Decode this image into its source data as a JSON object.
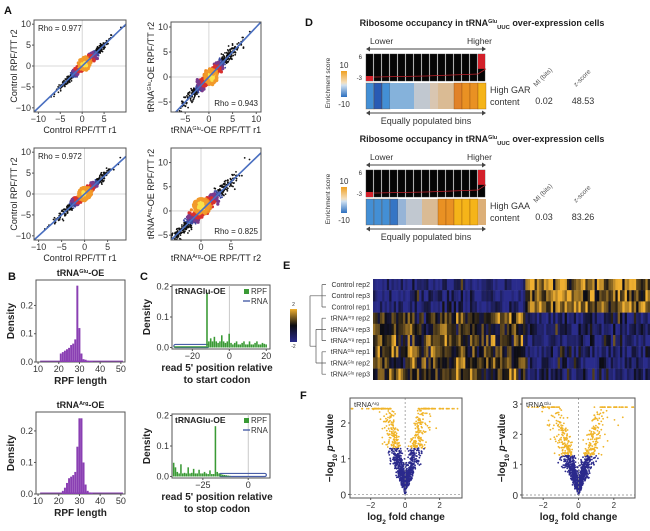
{
  "panels": {
    "A": "A",
    "B": "B",
    "C": "C",
    "D": "D",
    "E": "E",
    "F": "F"
  },
  "chart_data": [
    {
      "id": "A1",
      "type": "scatter",
      "title": "",
      "xlabel": "Control RPF/TT r1",
      "ylabel": "Control RPF/TT r2",
      "xlim": [
        -11,
        10
      ],
      "ylim": [
        -11,
        11
      ],
      "xticks": [
        -10,
        -5,
        0,
        5
      ],
      "yticks": [
        -10,
        -5,
        0,
        5,
        10
      ],
      "annotation": "Rho = 0.977",
      "annotation_position": "top-left",
      "fit_line": {
        "slope": 1,
        "intercept": 0
      },
      "spread": 0.9,
      "center": [
        0.5,
        0.5
      ],
      "grid_lines": [
        0,
        0
      ]
    },
    {
      "id": "A2",
      "type": "scatter",
      "title": "",
      "xlabel": "tRNAGlu-OE RPF/TT r1",
      "xlabel_parts": [
        "tRNA",
        "Glu",
        "-OE RPF/TT r1"
      ],
      "ylabel": "tRNAGlu-OE RPF/TT r2",
      "ylabel_parts": [
        "tRNA",
        "Glu",
        "-OE RPF/TT r2"
      ],
      "xlim": [
        -8,
        11
      ],
      "ylim": [
        -7,
        11
      ],
      "xticks": [
        -5,
        0,
        5,
        10
      ],
      "yticks": [
        -5,
        0,
        5,
        10
      ],
      "annotation": "Rho = 0.943",
      "annotation_position": "bottom-right",
      "fit_line": {
        "slope": 1,
        "intercept": 0
      },
      "spread": 1.3,
      "center": [
        0.5,
        0.0
      ],
      "grid_lines": [
        0,
        0
      ]
    },
    {
      "id": "A3",
      "type": "scatter",
      "title": "",
      "xlabel": "Control RPF/TT r1",
      "ylabel": "Control RPF/TT r2",
      "xlim": [
        -11,
        9
      ],
      "ylim": [
        -11,
        11
      ],
      "xticks": [
        -10,
        -5,
        0,
        5
      ],
      "yticks": [
        -10,
        -5,
        0,
        5,
        10
      ],
      "annotation": "Rho = 0.972",
      "annotation_position": "top-left",
      "fit_line": {
        "slope": 1,
        "intercept": 0
      },
      "spread": 1.0,
      "center": [
        0.0,
        0.0
      ],
      "grid_lines": [
        0,
        0
      ]
    },
    {
      "id": "A4",
      "type": "scatter",
      "title": "",
      "xlabel": "tRNAArg-OE RPF/TT r2",
      "xlabel_parts": [
        "tRNA",
        "Arg",
        "-OE RPF/TT r2"
      ],
      "ylabel": "tRNAArg-OE RPF/TT r2",
      "ylabel_parts": [
        "tRNA",
        "Arg",
        "-OE RPF/TT r2"
      ],
      "xlim": [
        -5,
        10
      ],
      "ylim": [
        -6,
        13
      ],
      "xticks": [
        0,
        5
      ],
      "yticks": [
        -5,
        0,
        5,
        10
      ],
      "annotation": "Rho = 0.825",
      "annotation_position": "bottom-right",
      "fit_line": {
        "slope": 1.2,
        "intercept": 0
      },
      "spread": 1.4,
      "center": [
        0.0,
        1.0
      ],
      "grid_lines": [
        0,
        0
      ]
    },
    {
      "id": "B1",
      "type": "bar",
      "title": "tRNAGlu-OE",
      "title_parts": [
        "tRNA",
        "Glu",
        "-OE"
      ],
      "xlabel": "RPF length",
      "ylabel": "Density",
      "xlim": [
        9,
        52
      ],
      "ylim": [
        0,
        0.29
      ],
      "xticks": [
        10,
        20,
        30,
        40,
        50
      ],
      "yticks": [
        0.0,
        0.1,
        0.2
      ],
      "x": [
        21,
        22,
        23,
        24,
        25,
        26,
        27,
        28,
        29,
        30,
        31,
        32,
        33,
        34,
        35,
        36
      ],
      "values": [
        0.03,
        0.035,
        0.04,
        0.045,
        0.05,
        0.06,
        0.065,
        0.08,
        0.27,
        0.12,
        0.03,
        0.01,
        0.008,
        0.005,
        0.003,
        0.002
      ],
      "baseline": 0.003,
      "color": "#8a3fb3"
    },
    {
      "id": "B2",
      "type": "bar",
      "title": "tRNAArg-OE",
      "title_parts": [
        "tRNA",
        "Arg",
        "-OE"
      ],
      "xlabel": "RPF length",
      "ylabel": "Density",
      "xlim": [
        9,
        52
      ],
      "ylim": [
        0,
        0.26
      ],
      "xticks": [
        10,
        20,
        30,
        40,
        50
      ],
      "yticks": [
        0.0,
        0.1,
        0.2
      ],
      "x": [
        22,
        23,
        24,
        25,
        26,
        27,
        28,
        29,
        30,
        31,
        32,
        33,
        34,
        35,
        36
      ],
      "values": [
        0.01,
        0.02,
        0.035,
        0.05,
        0.055,
        0.06,
        0.07,
        0.15,
        0.24,
        0.24,
        0.1,
        0.03,
        0.01,
        0.005,
        0.003
      ],
      "baseline": 0.003,
      "color": "#8a3fb3"
    },
    {
      "id": "C1",
      "type": "bar",
      "title": "tRNAGlu-OE",
      "xlabel": "read 5' position relative to start codon",
      "xlabel_lines": [
        "read 5' position relative",
        "to start codon"
      ],
      "ylabel": "Density",
      "xlim": [
        -31,
        22
      ],
      "ylim": [
        -0.005,
        0.205
      ],
      "xticks": [
        -20,
        0,
        20
      ],
      "yticks": [
        0.0,
        0.1,
        0.2
      ],
      "legend": [
        {
          "name": "RPF",
          "color": "#3a9a35"
        },
        {
          "name": "RNA",
          "color": "#4a5fa8"
        }
      ],
      "legend_position": "top-right",
      "vline": 0,
      "x": [
        -12,
        -11,
        -10,
        -9,
        -8,
        -7,
        -6,
        -5,
        -4,
        -3,
        -2,
        -1,
        0,
        1,
        2,
        3,
        4,
        5,
        6,
        7,
        8,
        9,
        10,
        11,
        12,
        13,
        14,
        15,
        16,
        17,
        18,
        19,
        20
      ],
      "values": [
        0.18,
        0.02,
        0.03,
        0.02,
        0.035,
        0.02,
        0.015,
        0.02,
        0.04,
        0.02,
        0.015,
        0.02,
        0.045,
        0.015,
        0.01,
        0.015,
        0.02,
        0.01,
        0.01,
        0.015,
        0.02,
        0.01,
        0.01,
        0.02,
        0.01,
        0.01,
        0.015,
        0.02,
        0.01,
        0.01,
        0.015,
        0.012,
        0.01
      ],
      "pre_level": 0.004,
      "rna_level": 0.01,
      "rna_range": [
        -30,
        -11
      ]
    },
    {
      "id": "C2",
      "type": "bar",
      "title": "tRNAGlu-OE",
      "xlabel": "read 5' position relative to stop codon",
      "xlabel_lines": [
        "read 5' position relative",
        "to stop codon"
      ],
      "ylabel": "Density",
      "xlim": [
        -42,
        12
      ],
      "ylim": [
        -0.005,
        0.205
      ],
      "xticks": [
        -25,
        0
      ],
      "yticks": [
        0.0,
        0.1,
        0.2
      ],
      "legend": [
        {
          "name": "RPF",
          "color": "#3a9a35"
        },
        {
          "name": "RNA",
          "color": "#4a5fa8"
        }
      ],
      "legend_position": "top-right",
      "vline": 0,
      "x": [
        -41,
        -40,
        -39,
        -38,
        -37,
        -36,
        -35,
        -34,
        -33,
        -32,
        -31,
        -30,
        -29,
        -28,
        -27,
        -26,
        -25,
        -24,
        -23,
        -22,
        -21,
        -20,
        -19,
        -18,
        -17,
        -16,
        -15,
        -14,
        -13,
        -12,
        -11,
        -10
      ],
      "values": [
        0.045,
        0.03,
        0.015,
        0.01,
        0.04,
        0.01,
        0.012,
        0.01,
        0.03,
        0.01,
        0.012,
        0.025,
        0.01,
        0.01,
        0.022,
        0.01,
        0.01,
        0.015,
        0.01,
        0.008,
        0.02,
        0.008,
        0.008,
        0.165,
        0.015,
        0.01,
        0.008,
        0.006,
        0.005,
        0.004,
        0.003,
        0.002
      ],
      "post_level": 0.0,
      "rna_level": 0.01,
      "rna_range": [
        -16,
        10
      ]
    },
    {
      "id": "D1",
      "type": "heatmap",
      "title_parts": [
        "Ribosome occupancy in tRNA",
        "Glu",
        "UUC",
        " over-expression cells"
      ],
      "title": "Ribosome occupancy in tRNAGlu UUC over-expression cells",
      "arrow_left": "Lower",
      "arrow_right": "Higher",
      "bottom_label": "Equally populated bins",
      "ytick_top": "6",
      "ytick_bottom": "-3",
      "colorbar_label": "Enrichment score",
      "colorbar_ticks": [
        "10",
        "-10"
      ],
      "feature_label_lines": [
        "High GAR",
        "content"
      ],
      "mi_header": "MI (bits)",
      "z_header": "z-score",
      "mi": "0.02",
      "z": "48.53",
      "bin_count": 15,
      "red_cells": [
        0,
        14
      ],
      "enrichment": [
        -8,
        -10,
        -8,
        -4,
        -4,
        -4,
        -1,
        -1,
        1,
        2,
        2,
        6,
        7,
        7,
        9
      ]
    },
    {
      "id": "D2",
      "type": "heatmap",
      "title_parts": [
        "Ribosome occupancy in tRNA",
        "Glu",
        "UUC",
        " over-expression cells"
      ],
      "title": "Ribosome occupancy in tRNAGlu UUC over-expression cells",
      "arrow_left": "Lower",
      "arrow_right": "Higher",
      "bottom_label": "Equally populated bins",
      "ytick_top": "6",
      "ytick_bottom": "-3",
      "colorbar_label": "Enrichment score",
      "colorbar_ticks": [
        "10",
        "-10"
      ],
      "feature_label_lines": [
        "High GAA",
        "content"
      ],
      "mi_header": "MI (bits)",
      "z_header": "z-score",
      "mi": "0.03",
      "z": "83.26",
      "bin_count": 15,
      "red_cells": [
        0,
        14
      ],
      "enrichment": [
        -8,
        -8,
        -8,
        -9,
        -3,
        -1,
        -1,
        2,
        2,
        7,
        7,
        9,
        9,
        9,
        3
      ]
    },
    {
      "id": "E",
      "type": "heatmap",
      "rows": [
        "Control rep2",
        "Control rep3",
        "Control rep1",
        "tRNAArg rep2",
        "tRNAArg rep3",
        "tRNAArg rep1",
        "tRNAGlu rep1",
        "tRNAGlu rep2",
        "tRNAGlu rep3"
      ],
      "row_parts": [
        [
          "Control rep2"
        ],
        [
          "Control rep3"
        ],
        [
          "Control rep1"
        ],
        [
          "tRNA",
          "Arg",
          " rep2"
        ],
        [
          "tRNA",
          "Arg",
          " rep3"
        ],
        [
          "tRNA",
          "Arg",
          " rep1"
        ],
        [
          "tRNA",
          "Glu",
          " rep1"
        ],
        [
          "tRNA",
          "Glu",
          " rep2"
        ],
        [
          "tRNA",
          "Glu",
          " rep3"
        ]
      ],
      "colorbar_ticks": [
        "2",
        "-2"
      ],
      "colorscale": [
        "#2a2c8c",
        "#0c0c12",
        "#f0b030"
      ],
      "column_count": 120,
      "split_fraction": 0.55,
      "row_groups": [
        "control",
        "control",
        "control",
        "treated",
        "treated",
        "treated",
        "treated",
        "treated",
        "treated"
      ]
    },
    {
      "id": "F1",
      "type": "scatter",
      "label_parts": [
        "tRNA",
        "Arg"
      ],
      "xlabel_parts": [
        "log",
        "2",
        " fold change"
      ],
      "ylabel_parts": [
        "−log",
        "10",
        " ",
        "p",
        "−value"
      ],
      "xlabel": "log2 fold change",
      "ylabel": "-log10 p-value",
      "xlim": [
        -3.2,
        3.3
      ],
      "ylim": [
        -0.1,
        2.7
      ],
      "xticks": [
        -2,
        0,
        2
      ],
      "yticks": [
        0,
        1,
        2
      ],
      "significance_threshold": 1.3,
      "colors": {
        "sig": "#f0b429",
        "nonsig": "#2b2a8c"
      }
    },
    {
      "id": "F2",
      "type": "scatter",
      "label_parts": [
        "tRNA",
        "Glu"
      ],
      "xlabel_parts": [
        "log",
        "2",
        " fold change"
      ],
      "ylabel_parts": [
        "−log",
        "10",
        " ",
        "p",
        "−value"
      ],
      "xlabel": "log2 fold change",
      "ylabel": "-log10 p-value",
      "xlim": [
        -3.2,
        3.2
      ],
      "ylim": [
        -0.1,
        3.2
      ],
      "xticks": [
        -2,
        0,
        2
      ],
      "yticks": [
        0,
        1,
        2,
        3
      ],
      "significance_threshold": 1.3,
      "colors": {
        "sig": "#f0b429",
        "nonsig": "#2b2a8c"
      }
    }
  ]
}
